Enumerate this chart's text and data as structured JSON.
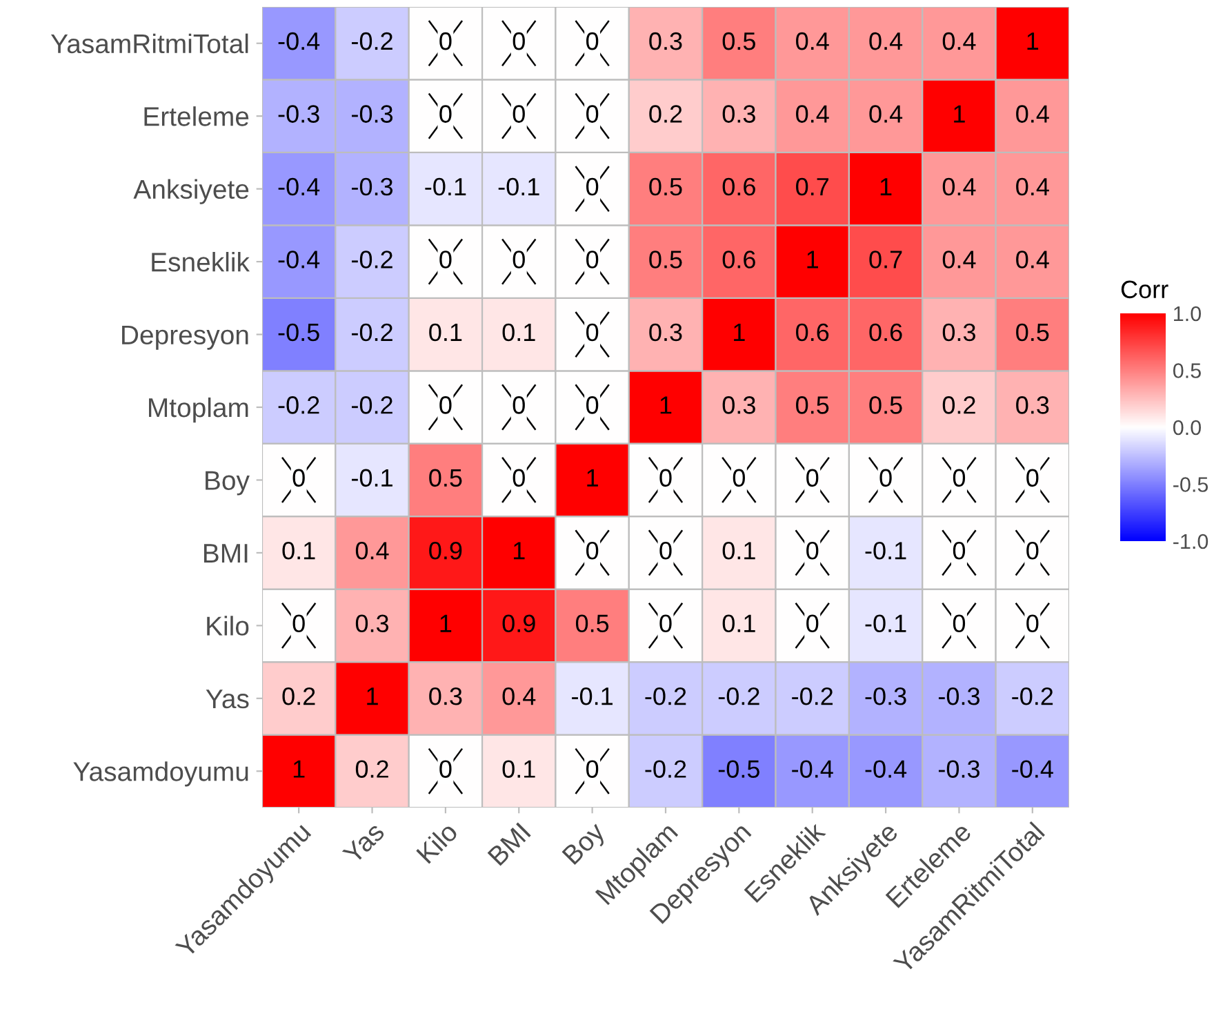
{
  "chart_data": {
    "type": "heatmap",
    "categories": [
      "Yasamdoyumu",
      "Yas",
      "Kilo",
      "BMI",
      "Boy",
      "Mtoplam",
      "Depresyon",
      "Esneklik",
      "Anksiyete",
      "Erteleme",
      "YasamRitmiTotal"
    ],
    "y_categories": [
      "YasamRitmiTotal",
      "Erteleme",
      "Anksiyete",
      "Esneklik",
      "Depresyon",
      "Mtoplam",
      "Boy",
      "BMI",
      "Kilo",
      "Yas",
      "Yasamdoyumu"
    ],
    "cells": [
      [
        -0.4,
        -0.2,
        0,
        0,
        0,
        0.3,
        0.5,
        0.4,
        0.4,
        0.4,
        1
      ],
      [
        -0.3,
        -0.3,
        0,
        0,
        0,
        0.2,
        0.3,
        0.4,
        0.4,
        1,
        0.4
      ],
      [
        -0.4,
        -0.3,
        -0.1,
        -0.1,
        0,
        0.5,
        0.6,
        0.7,
        1,
        0.4,
        0.4
      ],
      [
        -0.4,
        -0.2,
        0,
        0,
        0,
        0.5,
        0.6,
        1,
        0.7,
        0.4,
        0.4
      ],
      [
        -0.5,
        -0.2,
        0.1,
        0.1,
        0,
        0.3,
        1,
        0.6,
        0.6,
        0.3,
        0.5
      ],
      [
        -0.2,
        -0.2,
        0,
        0,
        0,
        1,
        0.3,
        0.5,
        0.5,
        0.2,
        0.3
      ],
      [
        0,
        -0.1,
        0.5,
        0,
        1,
        0,
        0,
        0,
        0,
        0,
        0
      ],
      [
        0.1,
        0.4,
        0.9,
        1,
        0,
        0,
        0.1,
        0,
        -0.1,
        0,
        0
      ],
      [
        0,
        0.3,
        1,
        0.9,
        0.5,
        0,
        0.1,
        0,
        -0.1,
        0,
        0
      ],
      [
        0.2,
        1,
        0.3,
        0.4,
        -0.1,
        -0.2,
        -0.2,
        -0.2,
        -0.3,
        -0.3,
        -0.2
      ],
      [
        1,
        0.2,
        0,
        0.1,
        0,
        -0.2,
        -0.5,
        -0.4,
        -0.4,
        -0.3,
        -0.4
      ]
    ],
    "colors": [
      "#0000ff",
      "#ffffff",
      "#ff0000"
    ],
    "clabel": "Corr",
    "clim": [
      -1,
      1
    ],
    "cticks": [
      {
        "value": -1,
        "label": "-1.0"
      },
      {
        "value": -0.5,
        "label": "-0.5"
      },
      {
        "value": 0,
        "label": "0.0"
      },
      {
        "value": 0.5,
        "label": "0.5"
      },
      {
        "value": 1,
        "label": "1.0"
      }
    ],
    "data_labels": true
  }
}
